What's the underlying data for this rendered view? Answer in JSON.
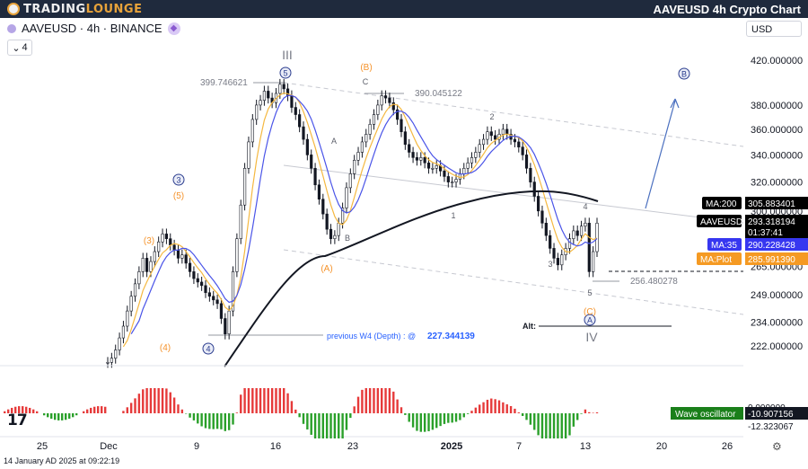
{
  "header": {
    "logo_part1": "TRADING",
    "logo_part2": "LOUNGE",
    "title": "AAVEUSD 4h Crypto Chart"
  },
  "symbol": {
    "text": "AAVEUSD · 4h · BINANCE"
  },
  "collapse": {
    "text": "4"
  },
  "currency": {
    "text": "USD"
  },
  "timestamp": "14 January AD 2025 at 09:22:19",
  "tv_logo": "17",
  "chart_data": {
    "type": "line",
    "y_axis": {
      "ticks": [
        420,
        380,
        360,
        340,
        320,
        300,
        265,
        249,
        234,
        222
      ],
      "labels": [
        "420.000000",
        "380.000000",
        "360.000000",
        "340.000000",
        "320.000000",
        "300.000000",
        "265.000000",
        "249.000000",
        "234.000000",
        "222.000000"
      ],
      "range": [
        205,
        432
      ],
      "scale": "log"
    },
    "x_axis": {
      "labels": [
        "25",
        "Dec",
        "9",
        "16",
        "23",
        "2025",
        "7",
        "13",
        "20",
        "26"
      ]
    },
    "badges": [
      {
        "key": "ma200",
        "label": "MA:200",
        "value": "305.883401",
        "color": "#000000"
      },
      {
        "key": "price",
        "label": "AAVEUSD",
        "value": "293.318194",
        "sub": "01:37:41",
        "color": "#000000"
      },
      {
        "key": "ma35",
        "label": "MA:35",
        "value": "290.228428",
        "color": "#3737f0"
      },
      {
        "key": "maplot",
        "label": "MA:Plot",
        "value": "285.991390",
        "color": "#f59a23"
      }
    ],
    "osc_badges": [
      {
        "label": "",
        "value": "0.000000",
        "color": "#ffffff"
      },
      {
        "label": "Wave oscillator",
        "value": "-10.907156",
        "color": "#1a7f1a"
      },
      {
        "label": "",
        "value": "-12.323067",
        "color": "#ffffff"
      }
    ],
    "price_levels": {
      "high_iii": "399.746621",
      "wave_c": "390.045122",
      "low_5": "256.480278",
      "prev_w4": "227.344139"
    },
    "labels": {
      "wave_iii": "III",
      "wave_iv": "IV",
      "circ5": "5",
      "circ4": "4",
      "circ3": "3",
      "circA": "A",
      "circB": "B",
      "p5": "(5)",
      "p4": "(4)",
      "p3": "(3)",
      "pA": "(A)",
      "pB": "(B)",
      "pC": "(C)",
      "A": "A",
      "B": "B",
      "C": "C",
      "n1": "1",
      "n2": "2",
      "n3": "3",
      "n4": "4",
      "n5": "5",
      "prev_w4_text": "previous W4 (Depth) : @",
      "alt": "Alt:"
    },
    "closes": [
      214,
      216,
      220,
      226,
      232,
      240,
      248,
      255,
      262,
      270,
      262,
      268,
      274,
      280,
      285,
      282,
      278,
      275,
      270,
      272,
      267,
      262,
      258,
      256,
      254,
      250,
      248,
      246,
      244,
      236,
      228,
      240,
      262,
      282,
      304,
      330,
      350,
      368,
      380,
      384,
      392,
      386,
      382,
      390,
      398,
      394,
      388,
      378,
      372,
      362,
      352,
      340,
      330,
      318,
      308,
      298,
      288,
      282,
      284,
      292,
      302,
      316,
      326,
      336,
      342,
      350,
      356,
      364,
      372,
      380,
      388,
      386,
      382,
      376,
      368,
      358,
      348,
      342,
      338,
      336,
      338,
      334,
      330,
      330,
      332,
      328,
      324,
      320,
      320,
      322,
      326,
      330,
      334,
      338,
      342,
      348,
      352,
      358,
      355,
      352,
      356,
      360,
      356,
      352,
      350,
      346,
      340,
      330,
      320,
      310,
      300,
      292,
      284,
      276,
      270,
      266,
      272,
      276,
      282,
      287,
      284,
      290,
      292,
      262,
      274,
      292
    ]
  }
}
